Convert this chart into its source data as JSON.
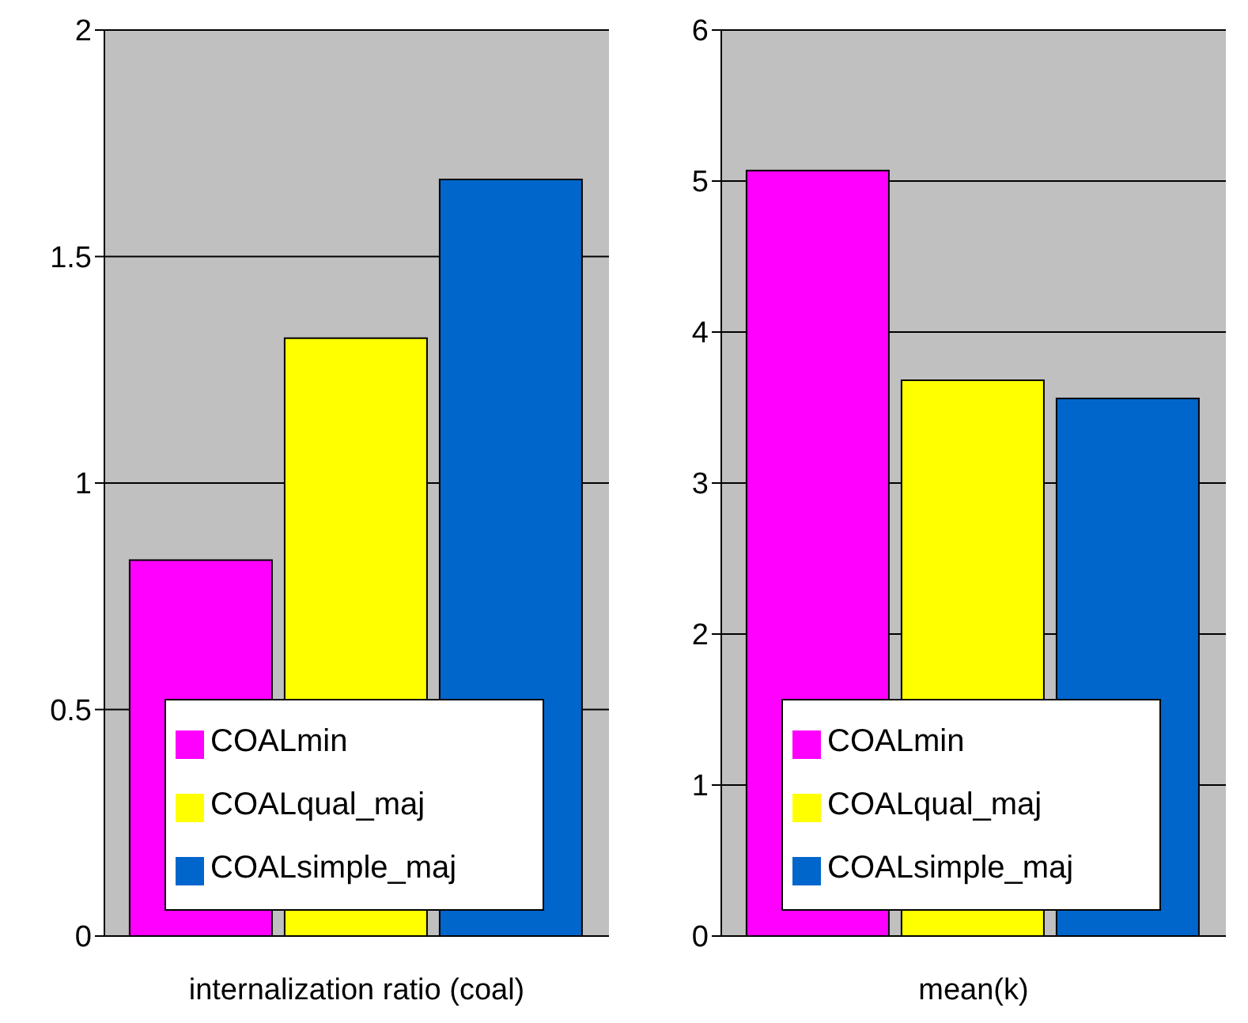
{
  "chart_data": [
    {
      "type": "bar",
      "xlabel": "internalization ratio (coal)",
      "categories": [
        null
      ],
      "ylim": [
        0,
        2
      ],
      "yticks": [
        0,
        0.5,
        1,
        1.5,
        2
      ],
      "grid": "y",
      "legend": "bottom",
      "series": [
        {
          "name": "COALmin",
          "color": "#ff00ff",
          "values": [
            0.83
          ]
        },
        {
          "name": "COALqual_maj",
          "color": "#ffff00",
          "values": [
            1.32
          ]
        },
        {
          "name": "COALsimple_maj",
          "color": "#0066cc",
          "values": [
            1.67
          ]
        }
      ]
    },
    {
      "type": "bar",
      "xlabel": "mean(k)",
      "categories": [
        null
      ],
      "ylim": [
        0,
        6
      ],
      "yticks": [
        0,
        1,
        2,
        3,
        4,
        5,
        6
      ],
      "grid": "y",
      "legend": "bottom",
      "series": [
        {
          "name": "COALmin",
          "color": "#ff00ff",
          "values": [
            5.07
          ]
        },
        {
          "name": "COALqual_maj",
          "color": "#ffff00",
          "values": [
            3.68
          ]
        },
        {
          "name": "COALsimple_maj",
          "color": "#0066cc",
          "values": [
            3.56
          ]
        }
      ]
    }
  ]
}
